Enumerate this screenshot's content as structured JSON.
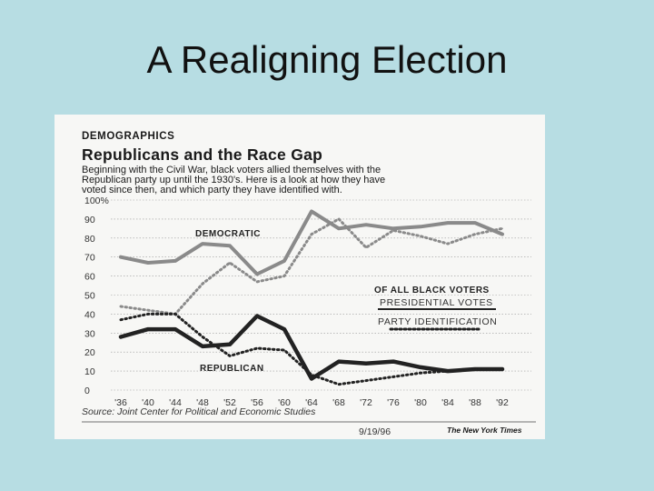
{
  "slide": {
    "title": "A Realigning Election"
  },
  "clipping": {
    "section": "DEMOGRAPHICS",
    "headline": "Republicans and the Race Gap",
    "intro": [
      "Beginning with the Civil War, black voters allied themselves with the",
      "Republican party up until the 1930's. Here is a look at how they have",
      "voted since then, and which party they have identified with."
    ],
    "source": "Source: Joint Center for Political and Economic Studies",
    "date": "9/19/96",
    "publisher": "The New York Times",
    "legend": {
      "heading": "OF ALL BLACK VOTERS",
      "solid": "PRESIDENTIAL VOTES",
      "dotted": "PARTY IDENTIFICATION"
    }
  },
  "chart_data": {
    "type": "line",
    "title": "Republicans and the Race Gap",
    "xlabel": "",
    "ylabel": "",
    "ylim": [
      0,
      100
    ],
    "yticks": [
      "100%",
      "90",
      "80",
      "70",
      "60",
      "50",
      "40",
      "30",
      "20",
      "10",
      "0"
    ],
    "categories": [
      "'36",
      "'40",
      "'44",
      "'48",
      "'52",
      "'56",
      "'60",
      "'64",
      "'68",
      "'72",
      "'76",
      "'80",
      "'84",
      "'88",
      "'92"
    ],
    "series": [
      {
        "name": "Democratic presidential votes",
        "label": "DEMOCRATIC",
        "style": "solid",
        "color": "#8a8a8a",
        "values": [
          70,
          67,
          68,
          77,
          76,
          61,
          68,
          94,
          85,
          87,
          85,
          86,
          88,
          88,
          82
        ]
      },
      {
        "name": "Democratic party identification",
        "style": "dotted",
        "color": "#8a8a8a",
        "values": [
          44,
          42,
          40,
          56,
          67,
          57,
          60,
          82,
          90,
          75,
          84,
          81,
          77,
          82,
          85
        ]
      },
      {
        "name": "Republican presidential votes",
        "label": "REPUBLICAN",
        "style": "solid",
        "color": "#222222",
        "values": [
          28,
          32,
          32,
          23,
          24,
          39,
          32,
          6,
          15,
          14,
          15,
          12,
          10,
          11,
          11
        ]
      },
      {
        "name": "Republican party identification",
        "style": "dotted",
        "color": "#222222",
        "values": [
          37,
          40,
          40,
          28,
          18,
          22,
          21,
          8,
          3,
          5,
          7,
          9,
          10,
          11,
          11
        ]
      }
    ]
  }
}
